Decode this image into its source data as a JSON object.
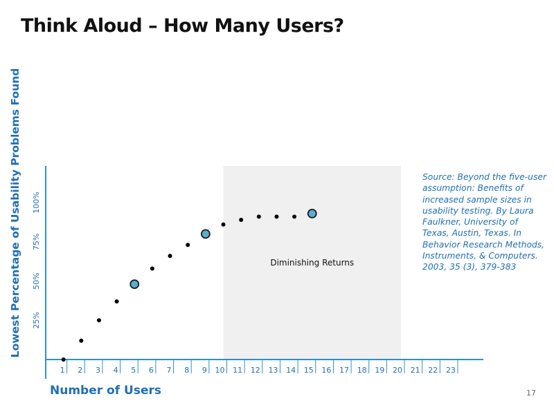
{
  "slide": {
    "title": "Think Aloud – How Many Users?",
    "page_number": "17",
    "source_note": "Source: Beyond the five-user assumption: Benefits of increased sample sizes in usability testing. By Laura Faulkner, University of Texas, Austin, Texas. In Behavior Research Methods, Instruments, & Computers. 2003, 35 (3), 379-383"
  },
  "colors": {
    "axis": "#2a8fd6",
    "label": "#1f6fb2",
    "shade": "#f0f0f0",
    "point": "#000000",
    "highlight_fill": "#5aaed0",
    "highlight_stroke": "#1a1a1a"
  },
  "chart_data": {
    "type": "scatter",
    "title": "",
    "xlabel": "Number of Users",
    "ylabel": "Lowest Percentage of Usability Problems Found",
    "x_ticks": [
      "1",
      "2",
      "3",
      "4",
      "5",
      "6",
      "7",
      "8",
      "9",
      "10",
      "11",
      "12",
      "13",
      "14",
      "15",
      "16",
      "17",
      "18",
      "19",
      "20",
      "21",
      "22",
      "23"
    ],
    "y_ticks": [
      {
        "value": 25,
        "label": "25%"
      },
      {
        "value": 50,
        "label": "50%"
      },
      {
        "value": 75,
        "label": "75%"
      },
      {
        "value": 100,
        "label": "100%"
      }
    ],
    "xlim": [
      0,
      23
    ],
    "ylim": [
      0,
      100
    ],
    "grid": false,
    "points": [
      {
        "x": 1,
        "y": 0
      },
      {
        "x": 2,
        "y": 12
      },
      {
        "x": 3,
        "y": 25
      },
      {
        "x": 4,
        "y": 37
      },
      {
        "x": 5,
        "y": 48,
        "highlight": true
      },
      {
        "x": 6,
        "y": 58
      },
      {
        "x": 7,
        "y": 66
      },
      {
        "x": 8,
        "y": 73
      },
      {
        "x": 9,
        "y": 80,
        "highlight": true
      },
      {
        "x": 10,
        "y": 86
      },
      {
        "x": 11,
        "y": 89
      },
      {
        "x": 12,
        "y": 91
      },
      {
        "x": 13,
        "y": 91
      },
      {
        "x": 14,
        "y": 91
      },
      {
        "x": 15,
        "y": 93,
        "highlight": true
      }
    ],
    "shaded_region": {
      "x_start": 10,
      "x_end": 20,
      "label": "Diminishing Returns"
    }
  }
}
